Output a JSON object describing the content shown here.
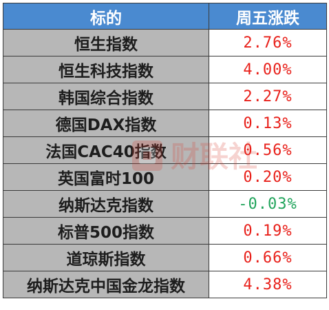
{
  "table": {
    "headers": [
      "标的",
      "周五涨跌"
    ],
    "rows": [
      {
        "name": "恒生指数",
        "change": "2.76%",
        "direction": "up"
      },
      {
        "name": "恒生科技指数",
        "change": "4.00%",
        "direction": "up"
      },
      {
        "name": "韩国综合指数",
        "change": "2.27%",
        "direction": "up"
      },
      {
        "name": "德国DAX指数",
        "change": "0.13%",
        "direction": "up"
      },
      {
        "name": "法国CAC40指数",
        "change": "0.56%",
        "direction": "up"
      },
      {
        "name": "英国富时100",
        "change": "0.20%",
        "direction": "up"
      },
      {
        "name": "纳斯达克指数",
        "change": "-0.03%",
        "direction": "down"
      },
      {
        "name": "标普500指数",
        "change": "0.19%",
        "direction": "up"
      },
      {
        "name": "道琼斯指数",
        "change": "0.66%",
        "direction": "up"
      },
      {
        "name": "纳斯达克中国金龙指数",
        "change": "4.38%",
        "direction": "up"
      }
    ]
  },
  "colors": {
    "header_bg": "#4a8ad0",
    "name_cell_bg": "#b7b7b7",
    "up": "#e8201a",
    "down": "#1fa35a"
  },
  "watermark": {
    "text": "财联社",
    "icon": "cls-logo-watermark"
  }
}
